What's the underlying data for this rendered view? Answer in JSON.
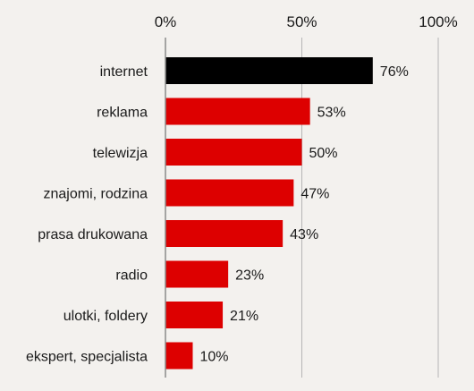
{
  "chart_data": {
    "type": "bar",
    "orientation": "horizontal",
    "categories": [
      "internet",
      "reklama",
      "telewizja",
      "znajomi, rodzina",
      "prasa drukowana",
      "radio",
      "ulotki, foldery",
      "ekspert, specjalista"
    ],
    "values": [
      76,
      53,
      50,
      47,
      43,
      23,
      21,
      10
    ],
    "value_labels": [
      "76%",
      "53%",
      "50%",
      "47%",
      "43%",
      "23%",
      "21%",
      "10%"
    ],
    "xlim": [
      0,
      100
    ],
    "x_ticks": [
      0,
      50,
      100
    ],
    "x_tick_labels": [
      "0%",
      "50%",
      "100%"
    ],
    "x_axis_position": "top",
    "grid": true,
    "highlight_index": 0,
    "colors": {
      "highlight": "#000000",
      "bar": "#dd0000",
      "grid": "#b5b5b5",
      "axis": "#8a8a8a",
      "background": "#f3f1ee"
    }
  }
}
